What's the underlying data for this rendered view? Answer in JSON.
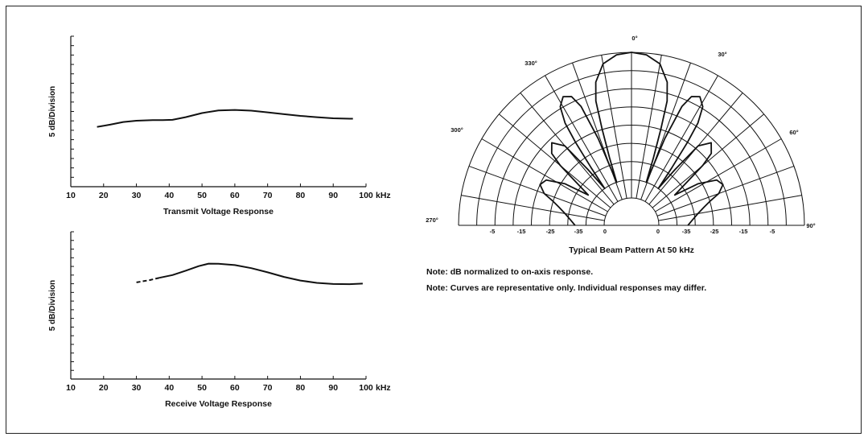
{
  "chart_data": [
    {
      "type": "line",
      "title": "Transmit Voltage Response",
      "ylabel": "5 dB/Division",
      "x_unit": "kHz",
      "xlim": [
        10,
        100
      ],
      "x_ticks": [
        "10",
        "20",
        "30",
        "40",
        "50",
        "60",
        "70",
        "80",
        "90",
        "100"
      ],
      "y_divisions": 16,
      "grid": false,
      "points": [
        [
          18,
          -4.6
        ],
        [
          22,
          -3.4
        ],
        [
          26,
          -2.0
        ],
        [
          30,
          -1.3
        ],
        [
          35,
          -1.0
        ],
        [
          38,
          -1.0
        ],
        [
          41,
          -0.8
        ],
        [
          45,
          0.6
        ],
        [
          50,
          2.8
        ],
        [
          55,
          4.2
        ],
        [
          60,
          4.5
        ],
        [
          65,
          4.1
        ],
        [
          70,
          3.2
        ],
        [
          75,
          2.2
        ],
        [
          80,
          1.3
        ],
        [
          85,
          0.6
        ],
        [
          90,
          0
        ],
        [
          95,
          -0.2
        ],
        [
          96,
          -0.2
        ]
      ]
    },
    {
      "type": "line",
      "title": "Receive Voltage Response",
      "ylabel": "5 dB/Division",
      "x_unit": "kHz",
      "xlim": [
        10,
        100
      ],
      "x_ticks": [
        "10",
        "20",
        "30",
        "40",
        "50",
        "60",
        "70",
        "80",
        "90",
        "100"
      ],
      "y_divisions": 17,
      "grid": false,
      "dashed_points": [
        [
          30,
          -11
        ],
        [
          34,
          -9.8
        ],
        [
          37,
          -8.5
        ]
      ],
      "points": [
        [
          37,
          -8.5
        ],
        [
          41,
          -7.0
        ],
        [
          45,
          -4.6
        ],
        [
          49,
          -2.1
        ],
        [
          52,
          -0.7
        ],
        [
          55,
          -0.8
        ],
        [
          60,
          -1.5
        ],
        [
          65,
          -3.2
        ],
        [
          70,
          -5.5
        ],
        [
          75,
          -8.0
        ],
        [
          80,
          -10.0
        ],
        [
          85,
          -11.3
        ],
        [
          90,
          -11.9
        ],
        [
          95,
          -12.0
        ],
        [
          99,
          -11.7
        ]
      ]
    },
    {
      "type": "polar",
      "title": "Typical Beam Pattern At 50 kHz",
      "angle_labels": [
        "0°",
        "30°",
        "60°",
        "90°",
        "270°",
        "300°",
        "330°"
      ],
      "radial_labels_right": [
        "0",
        "-35",
        "-25",
        "-15",
        "-5"
      ],
      "radial_labels_left": [
        "-5",
        "-15",
        "-25",
        "-35",
        "0"
      ],
      "beam_db": [
        [
          0,
          0
        ],
        [
          5,
          -0.5
        ],
        [
          10,
          -2.5
        ],
        [
          14,
          -7
        ],
        [
          16,
          -12
        ],
        [
          17,
          -20
        ],
        [
          18,
          -28
        ],
        [
          19,
          -35
        ],
        [
          21,
          -22
        ],
        [
          23,
          -12
        ],
        [
          25,
          -8.5
        ],
        [
          28,
          -7.5
        ],
        [
          31,
          -9.5
        ],
        [
          33,
          -14
        ],
        [
          34,
          -20
        ],
        [
          35,
          -28
        ],
        [
          36,
          -35
        ],
        [
          38,
          -28
        ],
        [
          40,
          -19
        ],
        [
          44,
          -16
        ],
        [
          48,
          -18
        ],
        [
          50,
          -22
        ],
        [
          52,
          -28
        ],
        [
          55,
          -33
        ],
        [
          58,
          -26
        ],
        [
          62,
          -21
        ],
        [
          66,
          -20
        ],
        [
          70,
          -22
        ],
        [
          73,
          -25
        ],
        [
          76,
          -27
        ],
        [
          80,
          -29
        ],
        [
          86,
          -31
        ],
        [
          90,
          -32
        ]
      ]
    }
  ],
  "notes": [
    "Note: dB normalized to on-axis response.",
    "Note: Curves are representative only. Individual responses may differ."
  ],
  "colors": {
    "ink": "#111111",
    "background": "#ffffff"
  }
}
